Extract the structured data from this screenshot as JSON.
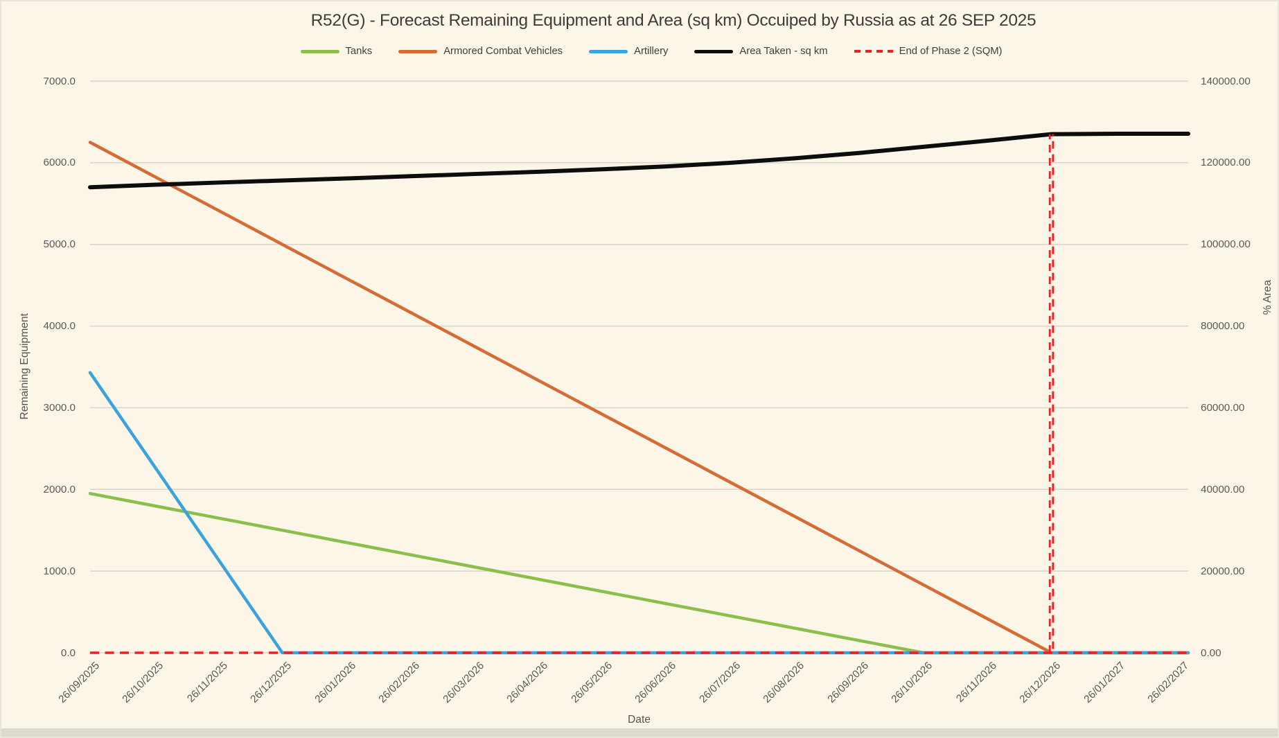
{
  "page": {
    "background_color": "#FBF6E7",
    "gridline_color": "#D8D4CB",
    "tick_text_color": "#595959",
    "bottom_strip_color": "#DCD9CF"
  },
  "chart_data": {
    "type": "line",
    "title": "R52(G) - Forecast Remaining Equipment and Area (sq km) Occuiped by Russia as at 26 SEP 2025",
    "legend_position": "top",
    "grid": true,
    "x_axis": {
      "title": "Date",
      "categories": [
        "26/09/2025",
        "26/10/2025",
        "26/11/2025",
        "26/12/2025",
        "26/01/2026",
        "26/02/2026",
        "26/03/2026",
        "26/04/2026",
        "26/05/2026",
        "26/06/2026",
        "26/07/2026",
        "26/08/2026",
        "26/09/2026",
        "26/10/2026",
        "26/11/2026",
        "26/12/2026",
        "26/01/2027",
        "26/02/2027"
      ]
    },
    "left_axis": {
      "title": "Remaining Equipment",
      "min": 0,
      "max": 7000,
      "tick_step": 1000,
      "tick_labels": [
        "7000.0",
        "6000.0",
        "5000.0",
        "4000.0",
        "3000.0",
        "2000.0",
        "1000.0",
        "0.0"
      ]
    },
    "right_axis": {
      "title": "% Area",
      "min": 0,
      "max": 140000,
      "tick_step": 20000,
      "tick_labels": [
        "140000.00",
        "120000.00",
        "100000.00",
        "80000.00",
        "60000.00",
        "40000.00",
        "20000.00",
        "0.00"
      ]
    },
    "series": [
      {
        "name": "Tanks",
        "color": "#8CBE4C",
        "axis": "left",
        "dash": false,
        "stroke_width": 4.5,
        "values": [
          1950,
          1800,
          1650,
          1500,
          1350,
          1200,
          1050,
          900,
          750,
          600,
          450,
          300,
          150,
          0,
          0,
          0,
          0,
          0
        ]
      },
      {
        "name": "Armored Combat Vehicles",
        "color": "#D56C35",
        "axis": "left",
        "dash": false,
        "stroke_width": 4.5,
        "values": [
          6250,
          5833,
          5417,
          5000,
          4583,
          4167,
          3750,
          3333,
          2917,
          2500,
          2083,
          1667,
          1250,
          833,
          417,
          0,
          0,
          0
        ]
      },
      {
        "name": "Artillery",
        "color": "#3AA3DC",
        "axis": "left",
        "dash": false,
        "stroke_width": 4.5,
        "values": [
          3430,
          2287,
          1143,
          0,
          0,
          0,
          0,
          0,
          0,
          0,
          0,
          0,
          0,
          0,
          0,
          0,
          0,
          0
        ]
      },
      {
        "name": "Area Taken - sq km",
        "color": "#0D0D0D",
        "axis": "right",
        "dash": false,
        "stroke_width": 6,
        "values": [
          114000,
          114600,
          115150,
          115650,
          116150,
          116700,
          117250,
          117800,
          118400,
          119100,
          120000,
          121100,
          122400,
          123900,
          125400,
          127000,
          127100,
          127100
        ]
      },
      {
        "name": "End of Phase 2 (SQM)",
        "color": "#EC2024",
        "axis": "right",
        "dash": true,
        "stroke_width": 3.4,
        "reference": {
          "horizontal_value": 0,
          "vertical_at_category": "26/12/2026",
          "vertical_from": 0,
          "vertical_to": 127000
        }
      }
    ]
  }
}
